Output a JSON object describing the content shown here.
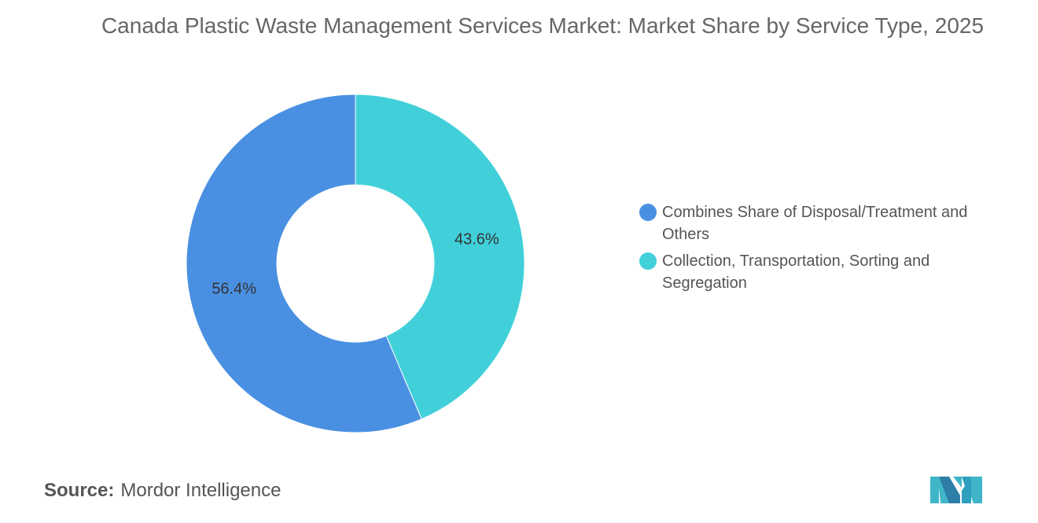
{
  "title": "Canada Plastic Waste Management Services Market: Market Share by Service Type, 2025",
  "source": {
    "label": "Source:",
    "value": "Mordor Intelligence"
  },
  "logo_icon": "mordor-intelligence-logo",
  "chart_data": {
    "type": "pie",
    "variant": "donut",
    "title": "Canada Plastic Waste Management Services Market: Market Share by Service Type, 2025",
    "legend_position": "right",
    "slices": [
      {
        "label": "Collection, Transportation, Sorting and Segregation",
        "value": 43.6,
        "display": "43.6%",
        "color": "#41D0DA"
      },
      {
        "label": "Combines Share of Disposal/Treatment and Others",
        "value": 56.4,
        "display": "56.4%",
        "color": "#4A90E2"
      }
    ],
    "legend": [
      {
        "label": "Combines Share of Disposal/Treatment and Others",
        "color": "#4A90E2"
      },
      {
        "label": "Collection, Transportation, Sorting and Segregation",
        "color": "#41D0DA"
      }
    ]
  }
}
